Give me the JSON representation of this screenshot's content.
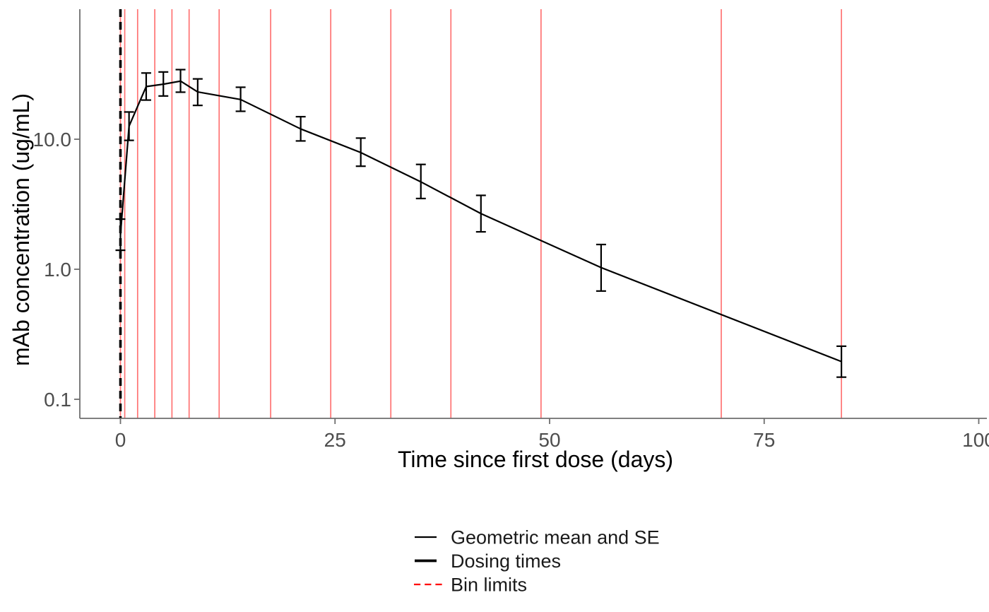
{
  "chart_data": {
    "type": "line",
    "title": "",
    "xlabel": "Time since first dose (days)",
    "ylabel": "mAb concentration (ug/mL)",
    "x_scale": "linear",
    "y_scale": "log10",
    "x_range": [
      -4.7,
      101
    ],
    "y_range": [
      0.071,
      100
    ],
    "grid": "off",
    "x_ticks": [
      {
        "value": 0,
        "label": "0"
      },
      {
        "value": 25,
        "label": "25"
      },
      {
        "value": 50,
        "label": "50"
      },
      {
        "value": 75,
        "label": "75"
      },
      {
        "value": 100,
        "label": "100"
      }
    ],
    "y_ticks": [
      {
        "value": 0.1,
        "label": "0.1"
      },
      {
        "value": 1,
        "label": "1.0"
      },
      {
        "value": 10,
        "label": "10.0"
      }
    ],
    "series": [
      {
        "name": "Geometric mean and SE",
        "points": [
          {
            "day": 0,
            "mean": 1.84,
            "se_lo": 1.4,
            "se_hi": 2.43
          },
          {
            "day": 1,
            "mean": 12.6,
            "se_lo": 9.8,
            "se_hi": 16.2
          },
          {
            "day": 3,
            "mean": 25.4,
            "se_lo": 20.0,
            "se_hi": 32.3
          },
          {
            "day": 5,
            "mean": 26.5,
            "se_lo": 21.5,
            "se_hi": 32.9
          },
          {
            "day": 7,
            "mean": 28.0,
            "se_lo": 23.0,
            "se_hi": 34.3
          },
          {
            "day": 9,
            "mean": 23.1,
            "se_lo": 18.2,
            "se_hi": 29.1
          },
          {
            "day": 14,
            "mean": 20.2,
            "se_lo": 16.4,
            "se_hi": 25.1
          },
          {
            "day": 21,
            "mean": 12.0,
            "se_lo": 9.7,
            "se_hi": 14.9
          },
          {
            "day": 28,
            "mean": 7.9,
            "se_lo": 6.2,
            "se_hi": 10.2
          },
          {
            "day": 35,
            "mean": 4.7,
            "se_lo": 3.5,
            "se_hi": 6.4
          },
          {
            "day": 42,
            "mean": 2.68,
            "se_lo": 1.94,
            "se_hi": 3.7
          },
          {
            "day": 56,
            "mean": 1.03,
            "se_lo": 0.68,
            "se_hi": 1.55
          },
          {
            "day": 84,
            "mean": 0.195,
            "se_lo": 0.148,
            "se_hi": 0.256
          }
        ]
      }
    ],
    "dosing_times": [
      0
    ],
    "bin_limits": [
      0,
      0.5,
      2,
      4,
      6,
      8,
      11.5,
      17.5,
      24.5,
      31.5,
      38.5,
      49,
      70,
      84
    ],
    "legend": [
      {
        "label": "Geometric mean and SE",
        "style": "solid-thin",
        "color": "#000000"
      },
      {
        "label": "Dosing times",
        "style": "solid-thick",
        "color": "#000000"
      },
      {
        "label": "Bin limits",
        "style": "dashed",
        "color": "#ff0000"
      }
    ],
    "legend_position": "bottom",
    "colors": {
      "series": "#000000",
      "dosing_line": "#000000",
      "bin_limit_line": "#ff0000",
      "bin_limit_opacity": 0.55,
      "axis_line": "#6e6e6e",
      "tick_text": "#4d4d4d",
      "axis_title_text": "#000000"
    }
  }
}
